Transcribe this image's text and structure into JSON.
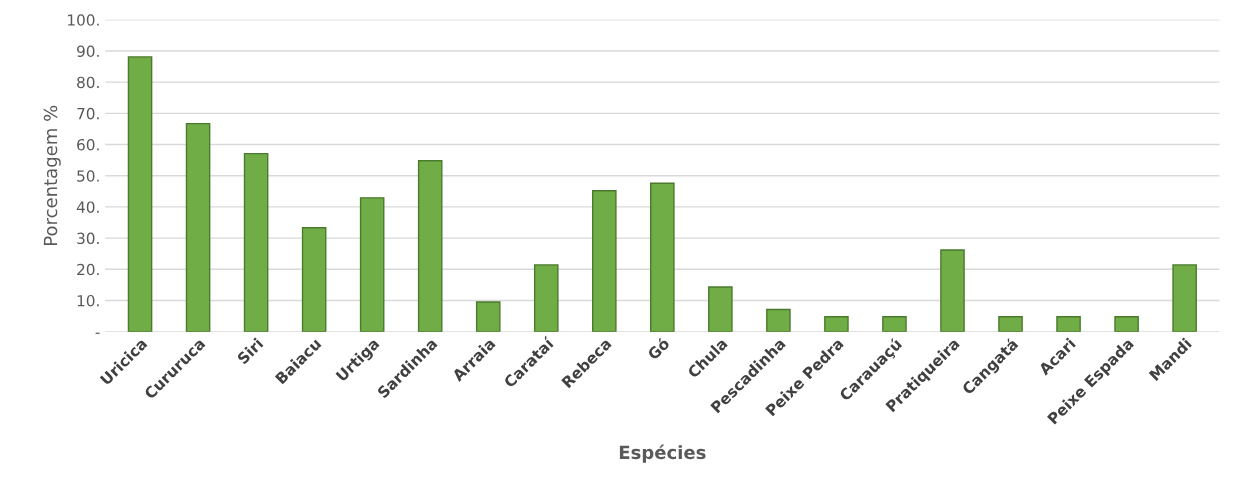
{
  "chart_data": {
    "type": "bar",
    "xlabel": "Espécies",
    "ylabel": "Porcentagem %",
    "categories": [
      "Uricica",
      "Cururuca",
      "Siri",
      "Baiacu",
      "Urtiga",
      "Sardinha",
      "Arraia",
      "Carataí",
      "Rebeca",
      "Gó",
      "Chula",
      "Pescadinha",
      "Peixe Pedra",
      "Carauaçú",
      "Pratiqueira",
      "Cangatá",
      "Acari",
      "Peixe Espada",
      "Mandi"
    ],
    "values": [
      88.1,
      66.7,
      57.1,
      33.3,
      42.9,
      54.8,
      9.5,
      21.4,
      45.2,
      47.6,
      14.3,
      7.1,
      4.8,
      4.8,
      26.2,
      4.8,
      4.8,
      4.8,
      21.4
    ],
    "color": "#70ad47",
    "ylim": [
      0,
      100
    ],
    "yticks": [
      {
        "value": 0,
        "label": "-"
      },
      {
        "value": 10,
        "label": "10."
      },
      {
        "value": 20,
        "label": "20."
      },
      {
        "value": 30,
        "label": "30."
      },
      {
        "value": 40,
        "label": "40."
      },
      {
        "value": 50,
        "label": "50."
      },
      {
        "value": 60,
        "label": "60."
      },
      {
        "value": 70,
        "label": "70."
      },
      {
        "value": 80,
        "label": "80."
      },
      {
        "value": 90,
        "label": "90."
      },
      {
        "value": 100,
        "label": "100."
      }
    ],
    "grid": "y"
  }
}
